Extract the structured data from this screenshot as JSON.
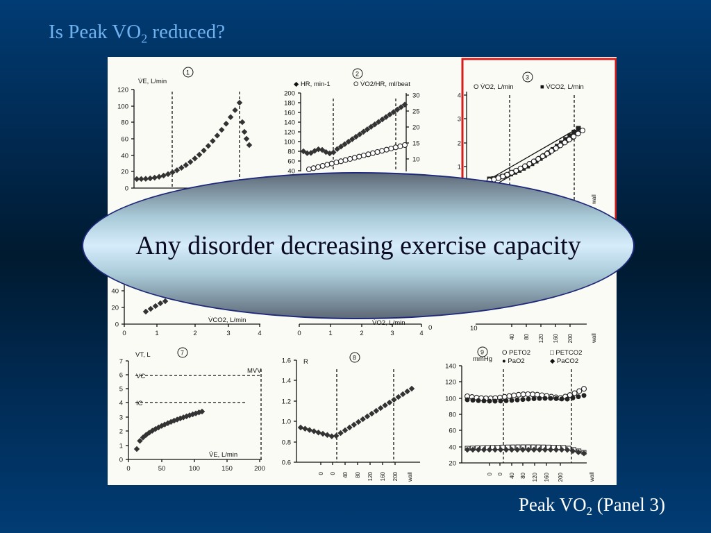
{
  "title": {
    "text": "Is Peak VO",
    "sub": "2",
    "rest": " reduced?"
  },
  "caption": {
    "text": "Peak VO",
    "sub": "2",
    "rest": " (Panel 3)"
  },
  "oval_text": "Any disorder decreasing exercise capacity",
  "colors": {
    "title": "#6fb0ee",
    "caption": "#ffffff",
    "panel_highlight": "#d11f1f"
  },
  "figure": {
    "panel1": {
      "number": "1",
      "ylabel": "V̇E, L/min",
      "yticks": [
        "120",
        "100",
        "80",
        "60",
        "40",
        "20",
        "0"
      ]
    },
    "panel2": {
      "number": "2",
      "left_label": "◆ HR, min-1",
      "right_label": "O V̇O2/HR, ml/beat",
      "yticks_left": [
        "200",
        "180",
        "160",
        "140",
        "120",
        "100",
        "80",
        "60",
        "40"
      ],
      "yticks_right": [
        "30",
        "25",
        "20",
        "15",
        "10"
      ]
    },
    "panel3": {
      "number": "3",
      "legend1": "O V̇O2, L/min",
      "legend2": "■ V̇CO2, L/min",
      "yticks": [
        "4",
        "3",
        "2",
        "1"
      ],
      "xtick_wall": "wall"
    },
    "panel4": {
      "yticks": [
        "40",
        "20",
        "0"
      ],
      "xlabel": "V̇CO2, L/min",
      "xticks": [
        "0",
        "1",
        "2",
        "3",
        "4"
      ]
    },
    "panel5": {
      "xlabel": "V̇O2, L/min",
      "xticks": [
        "0",
        "1",
        "2",
        "3",
        "4"
      ],
      "right_tick": "0"
    },
    "panel6": {
      "ytick": "10",
      "xticks": [
        "40",
        "80",
        "120",
        "160",
        "200"
      ],
      "xtick_wall": "wall"
    },
    "panel7": {
      "number": "7",
      "ylabel": "VT, L",
      "vc": "VC",
      "ic": "IC",
      "mvv": "MVV",
      "xlabel": "V̇E, L/min",
      "yticks": [
        "7",
        "6",
        "5",
        "4",
        "3",
        "2",
        "1",
        "0"
      ],
      "xticks": [
        "0",
        "50",
        "100",
        "150",
        "200"
      ]
    },
    "panel8": {
      "number": "8",
      "ylabel": "R",
      "yticks": [
        "1.6",
        "1.4",
        "1.2",
        "1.0",
        "0.8",
        "0.6"
      ],
      "xticks": [
        "0",
        "0",
        "40",
        "80",
        "120",
        "160",
        "200"
      ],
      "xtick_wall": "wall"
    },
    "panel9": {
      "number": "9",
      "unit": "mmHg",
      "legend1": "O PETO2",
      "legend2": "□ PETCO2",
      "legend3": "● PaO2",
      "legend4": "◆ PaCO2",
      "yticks": [
        "140",
        "120",
        "100",
        "80",
        "60",
        "40",
        "20"
      ],
      "xticks": [
        "0",
        "0",
        "40",
        "80",
        "120",
        "160",
        "200"
      ],
      "xtick_wall": "wall"
    }
  }
}
